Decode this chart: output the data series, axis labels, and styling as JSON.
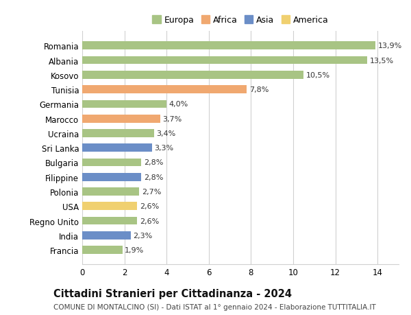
{
  "categories": [
    "Francia",
    "India",
    "Regno Unito",
    "USA",
    "Polonia",
    "Filippine",
    "Bulgaria",
    "Sri Lanka",
    "Ucraina",
    "Marocco",
    "Germania",
    "Tunisia",
    "Kosovo",
    "Albania",
    "Romania"
  ],
  "values": [
    1.9,
    2.3,
    2.6,
    2.6,
    2.7,
    2.8,
    2.8,
    3.3,
    3.4,
    3.7,
    4.0,
    7.8,
    10.5,
    13.5,
    13.9
  ],
  "labels": [
    "1,9%",
    "2,3%",
    "2,6%",
    "2,6%",
    "2,7%",
    "2,8%",
    "2,8%",
    "3,3%",
    "3,4%",
    "3,7%",
    "4,0%",
    "7,8%",
    "10,5%",
    "13,5%",
    "13,9%"
  ],
  "colors": [
    "#a8c484",
    "#6b8ec7",
    "#a8c484",
    "#f0d070",
    "#a8c484",
    "#6b8ec7",
    "#a8c484",
    "#6b8ec7",
    "#a8c484",
    "#f0a870",
    "#a8c484",
    "#f0a870",
    "#a8c484",
    "#a8c484",
    "#a8c484"
  ],
  "legend_labels": [
    "Europa",
    "Africa",
    "Asia",
    "America"
  ],
  "legend_colors": [
    "#a8c484",
    "#f0a870",
    "#6b8ec7",
    "#f0d070"
  ],
  "title": "Cittadini Stranieri per Cittadinanza - 2024",
  "subtitle": "COMUNE DI MONTALCINO (SI) - Dati ISTAT al 1° gennaio 2024 - Elaborazione TUTTITALIA.IT",
  "xlim": [
    0,
    15
  ],
  "xticks": [
    0,
    2,
    4,
    6,
    8,
    10,
    12,
    14
  ],
  "background_color": "#ffffff",
  "grid_color": "#d0d0d0",
  "bar_height": 0.55,
  "title_fontsize": 10.5,
  "subtitle_fontsize": 7.5,
  "label_fontsize": 8,
  "tick_fontsize": 8.5,
  "legend_fontsize": 9
}
